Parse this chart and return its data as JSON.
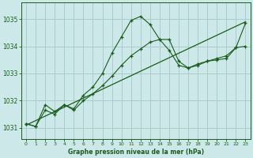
{
  "title": "Graphe pression niveau de la mer (hPa)",
  "bg_color": "#cce8e8",
  "line_color": "#1a5c1a",
  "grid_color": "#aacccc",
  "xlim": [
    -0.5,
    23.5
  ],
  "ylim": [
    1030.6,
    1035.6
  ],
  "yticks": [
    1031,
    1032,
    1033,
    1034,
    1035
  ],
  "xticks": [
    0,
    1,
    2,
    3,
    4,
    5,
    6,
    7,
    8,
    9,
    10,
    11,
    12,
    13,
    14,
    15,
    16,
    17,
    18,
    19,
    20,
    21,
    22,
    23
  ],
  "line1_x": [
    0,
    1,
    2,
    3,
    4,
    5,
    6,
    7,
    8,
    9,
    10,
    11,
    12,
    13,
    14,
    15,
    16,
    17,
    18,
    19,
    20,
    21,
    22,
    23
  ],
  "line1_y": [
    1031.15,
    1031.05,
    1031.85,
    1031.6,
    1031.85,
    1031.7,
    1032.2,
    1032.5,
    1033.0,
    1033.75,
    1034.35,
    1034.95,
    1035.1,
    1034.8,
    1034.25,
    1033.85,
    1033.3,
    1033.2,
    1033.35,
    1033.45,
    1033.55,
    1033.65,
    1033.95,
    1034.0
  ],
  "line2_x": [
    0,
    1,
    2,
    3,
    4,
    5,
    6,
    7,
    8,
    9,
    10,
    11,
    12,
    13,
    14,
    15,
    16,
    17,
    18,
    19,
    20,
    21,
    22,
    23
  ],
  "line2_y": [
    1031.15,
    1031.05,
    1031.65,
    1031.5,
    1031.85,
    1031.65,
    1032.0,
    1032.25,
    1032.55,
    1032.9,
    1033.3,
    1033.65,
    1033.9,
    1034.15,
    1034.25,
    1034.25,
    1033.45,
    1033.2,
    1033.3,
    1033.45,
    1033.5,
    1033.55,
    1033.95,
    1034.85
  ],
  "trend_x": [
    0,
    23
  ],
  "trend_y": [
    1031.1,
    1034.9
  ]
}
